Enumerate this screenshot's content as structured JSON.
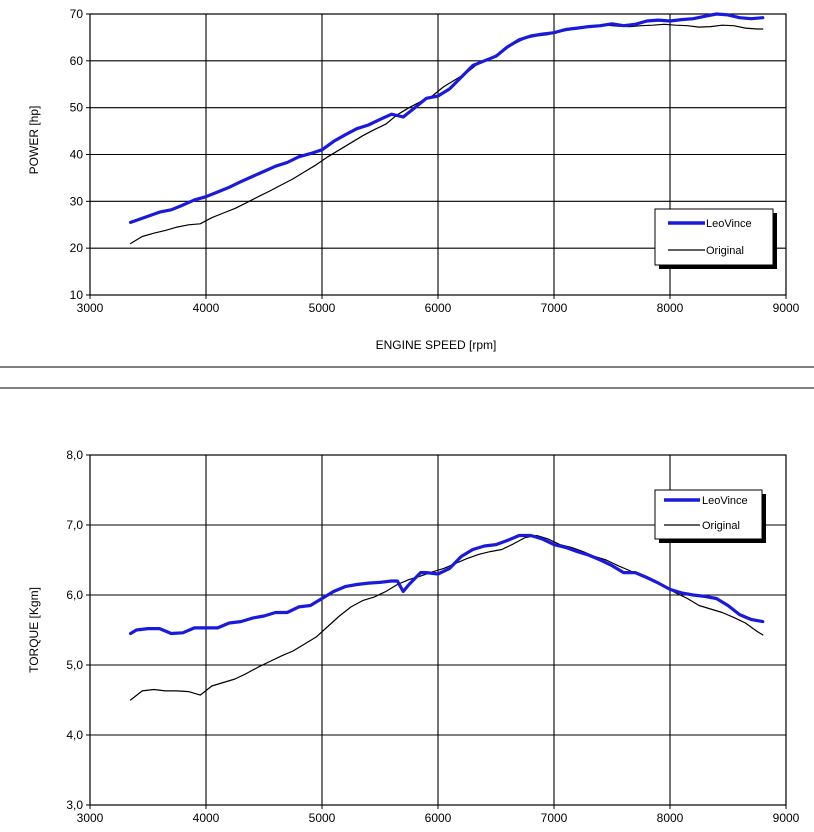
{
  "chart_data": [
    {
      "type": "line",
      "xlabel": "ENGINE SPEED [rpm]",
      "ylabel": "POWER [hp]",
      "xlim": [
        3000,
        9000
      ],
      "ylim": [
        10,
        70
      ],
      "xticks": [
        3000,
        4000,
        5000,
        6000,
        7000,
        8000,
        9000
      ],
      "xtick_labels": [
        "3000",
        "4000",
        "5000",
        "6000",
        "7000",
        "8000",
        "9000"
      ],
      "yticks": [
        10,
        20,
        30,
        40,
        50,
        60,
        70
      ],
      "ytick_labels": [
        "10",
        "20",
        "30",
        "40",
        "50",
        "60",
        "70"
      ],
      "grid": true,
      "legend_position": "bottom-right",
      "series": [
        {
          "name": "LeoVince",
          "color": "#1a1adc",
          "x": [
            3350,
            3500,
            3600,
            3700,
            3800,
            3900,
            4000,
            4100,
            4200,
            4300,
            4400,
            4500,
            4600,
            4700,
            4800,
            4900,
            5000,
            5100,
            5200,
            5300,
            5400,
            5500,
            5600,
            5700,
            5800,
            5900,
            6000,
            6100,
            6200,
            6300,
            6400,
            6500,
            6600,
            6700,
            6800,
            6900,
            7000,
            7100,
            7200,
            7300,
            7400,
            7500,
            7600,
            7700,
            7800,
            7900,
            8000,
            8100,
            8200,
            8300,
            8400,
            8500,
            8600,
            8700,
            8800
          ],
          "y": [
            25.5,
            26.8,
            27.7,
            28.2,
            29.2,
            30.3,
            31.0,
            32.0,
            33.0,
            34.2,
            35.3,
            36.4,
            37.5,
            38.3,
            39.5,
            40.2,
            41.0,
            42.8,
            44.2,
            45.5,
            46.3,
            47.5,
            48.6,
            48.0,
            50.0,
            52.0,
            52.5,
            54.0,
            56.5,
            59.0,
            60.0,
            61.0,
            63.0,
            64.5,
            65.3,
            65.7,
            66.0,
            66.7,
            67.0,
            67.3,
            67.5,
            67.9,
            67.5,
            67.8,
            68.5,
            68.7,
            68.5,
            68.8,
            69.0,
            69.5,
            70.0,
            69.8,
            69.2,
            69.0,
            69.2
          ]
        },
        {
          "name": "Original",
          "color": "#000000",
          "x": [
            3350,
            3450,
            3550,
            3650,
            3750,
            3850,
            3950,
            4050,
            4150,
            4250,
            4350,
            4450,
            4550,
            4650,
            4750,
            4850,
            4950,
            5050,
            5150,
            5250,
            5350,
            5450,
            5550,
            5650,
            5750,
            5850,
            5950,
            6050,
            6150,
            6250,
            6350,
            6450,
            6550,
            6650,
            6750,
            6850,
            6950,
            7050,
            7150,
            7250,
            7350,
            7450,
            7550,
            7650,
            7750,
            7850,
            7950,
            8050,
            8150,
            8250,
            8350,
            8450,
            8550,
            8650,
            8750,
            8800
          ],
          "y": [
            21.0,
            22.5,
            23.2,
            23.8,
            24.5,
            25.0,
            25.2,
            26.5,
            27.5,
            28.5,
            29.7,
            31.0,
            32.2,
            33.5,
            34.8,
            36.3,
            37.8,
            39.5,
            41.0,
            42.5,
            44.0,
            45.3,
            46.5,
            48.5,
            50.0,
            51.3,
            52.5,
            54.5,
            56.0,
            57.5,
            59.5,
            60.5,
            62.0,
            63.5,
            64.8,
            65.3,
            65.6,
            66.2,
            66.7,
            67.0,
            67.3,
            67.6,
            67.4,
            67.3,
            67.5,
            67.6,
            67.8,
            67.6,
            67.5,
            67.2,
            67.3,
            67.6,
            67.5,
            67.0,
            66.8,
            66.8
          ]
        }
      ]
    },
    {
      "type": "line",
      "xlabel": "",
      "ylabel": "TORQUE [Kgm]",
      "xlim": [
        3000,
        9000
      ],
      "ylim": [
        3.0,
        8.0
      ],
      "xticks": [
        3000,
        4000,
        5000,
        6000,
        7000,
        8000,
        9000
      ],
      "xtick_labels": [
        "3000",
        "4000",
        "5000",
        "6000",
        "7000",
        "8000",
        "9000"
      ],
      "yticks": [
        3.0,
        4.0,
        5.0,
        6.0,
        7.0,
        8.0
      ],
      "ytick_labels": [
        "3,0",
        "4,0",
        "5,0",
        "6,0",
        "7,0",
        "8,0"
      ],
      "grid": true,
      "legend_position": "top-right",
      "series": [
        {
          "name": "LeoVince",
          "color": "#1a1adc",
          "x": [
            3350,
            3400,
            3500,
            3600,
            3700,
            3800,
            3900,
            4000,
            4100,
            4200,
            4300,
            4400,
            4500,
            4600,
            4700,
            4800,
            4900,
            5000,
            5100,
            5200,
            5300,
            5400,
            5500,
            5600,
            5650,
            5700,
            5750,
            5850,
            5900,
            6000,
            6100,
            6200,
            6300,
            6400,
            6500,
            6600,
            6700,
            6800,
            6900,
            7000,
            7100,
            7200,
            7300,
            7400,
            7500,
            7600,
            7700,
            7800,
            7900,
            8000,
            8100,
            8200,
            8300,
            8400,
            8500,
            8600,
            8700,
            8800
          ],
          "y": [
            5.45,
            5.5,
            5.52,
            5.52,
            5.45,
            5.46,
            5.53,
            5.53,
            5.53,
            5.6,
            5.62,
            5.67,
            5.7,
            5.75,
            5.75,
            5.83,
            5.85,
            5.95,
            6.05,
            6.12,
            6.15,
            6.17,
            6.18,
            6.2,
            6.2,
            6.05,
            6.15,
            6.32,
            6.32,
            6.3,
            6.38,
            6.55,
            6.65,
            6.7,
            6.72,
            6.78,
            6.85,
            6.85,
            6.8,
            6.72,
            6.68,
            6.62,
            6.57,
            6.5,
            6.42,
            6.32,
            6.32,
            6.25,
            6.17,
            6.08,
            6.03,
            6.0,
            5.98,
            5.95,
            5.85,
            5.72,
            5.65,
            5.62
          ]
        },
        {
          "name": "Original",
          "color": "#000000",
          "x": [
            3350,
            3450,
            3550,
            3650,
            3750,
            3850,
            3950,
            4050,
            4150,
            4250,
            4350,
            4450,
            4550,
            4650,
            4750,
            4850,
            4950,
            5050,
            5150,
            5250,
            5350,
            5450,
            5550,
            5650,
            5750,
            5850,
            5950,
            6050,
            6150,
            6250,
            6350,
            6450,
            6550,
            6650,
            6750,
            6850,
            6950,
            7050,
            7150,
            7250,
            7350,
            7450,
            7550,
            7650,
            7750,
            7850,
            7950,
            8050,
            8150,
            8250,
            8350,
            8450,
            8550,
            8650,
            8750,
            8800
          ],
          "y": [
            4.5,
            4.63,
            4.65,
            4.63,
            4.63,
            4.62,
            4.57,
            4.7,
            4.75,
            4.8,
            4.88,
            4.97,
            5.05,
            5.13,
            5.2,
            5.3,
            5.4,
            5.55,
            5.7,
            5.83,
            5.92,
            5.97,
            6.05,
            6.15,
            6.22,
            6.27,
            6.33,
            6.38,
            6.45,
            6.52,
            6.58,
            6.62,
            6.65,
            6.73,
            6.82,
            6.85,
            6.8,
            6.72,
            6.68,
            6.62,
            6.55,
            6.5,
            6.42,
            6.35,
            6.27,
            6.2,
            6.12,
            6.03,
            5.95,
            5.85,
            5.8,
            5.75,
            5.68,
            5.6,
            5.48,
            5.43
          ]
        }
      ]
    }
  ]
}
